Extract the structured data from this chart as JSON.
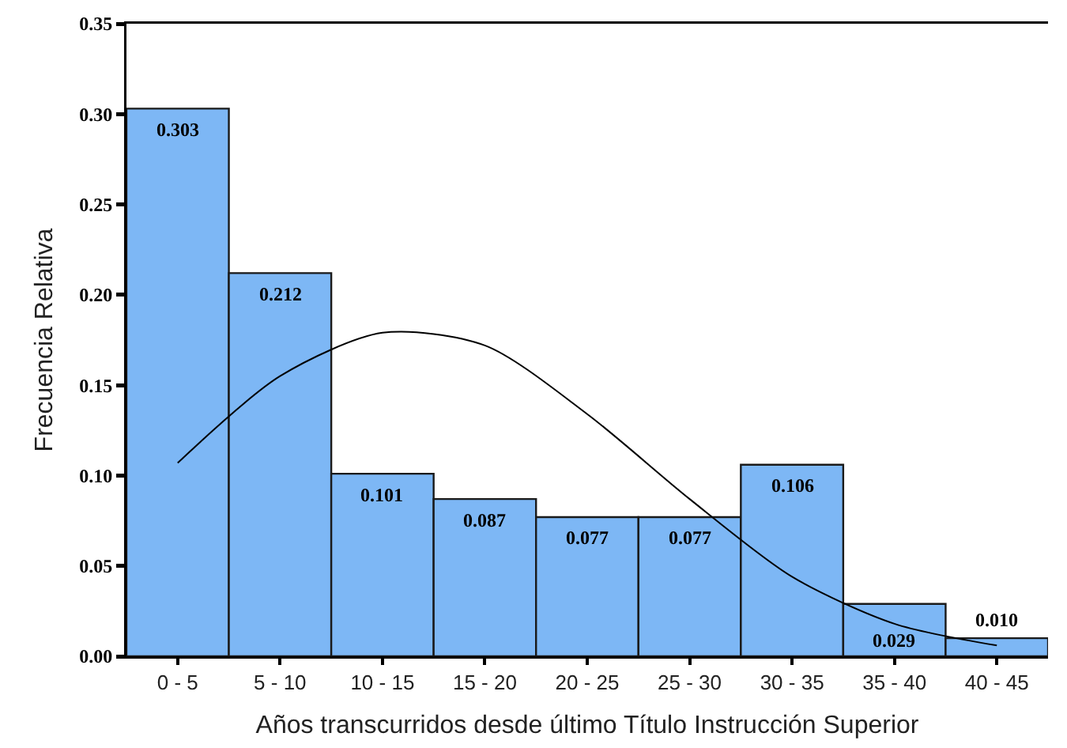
{
  "chart_data": {
    "type": "bar",
    "xlabel": "Años transcurridos desde último Título Instrucción Superior",
    "ylabel": "Frecuencia Relativa",
    "categories": [
      "0 - 5",
      "5 - 10",
      "10 - 15",
      "15 - 20",
      "20 - 25",
      "25 - 30",
      "30 - 35",
      "35 - 40",
      "40 - 45"
    ],
    "ylim": [
      0,
      0.35
    ],
    "yticks": [
      {
        "value": 0,
        "label": "0.00"
      },
      {
        "value": 0.05,
        "label": "0.05"
      },
      {
        "value": 0.1,
        "label": "0.10"
      },
      {
        "value": 0.15,
        "label": "0.15"
      },
      {
        "value": 0.2,
        "label": "0.20"
      },
      {
        "value": 0.25,
        "label": "0.25"
      },
      {
        "value": 0.3,
        "label": "0.30"
      },
      {
        "value": 0.35,
        "label": "0.35"
      }
    ],
    "series": [
      {
        "color": "#7db7f5",
        "values": [
          0.303,
          0.212,
          0.101,
          0.087,
          0.077,
          0.077,
          0.106,
          0.029,
          0.01
        ],
        "value_labels": [
          "0.303",
          "0.212",
          "0.101",
          "0.087",
          "0.077",
          "0.077",
          "0.106",
          "0.029",
          "0.010"
        ]
      },
      {
        "type": "line",
        "color": "#000000",
        "values": [
          0.107,
          0.155,
          0.179,
          0.172,
          0.134,
          0.087,
          0.044,
          0.018,
          0.006
        ]
      }
    ]
  }
}
